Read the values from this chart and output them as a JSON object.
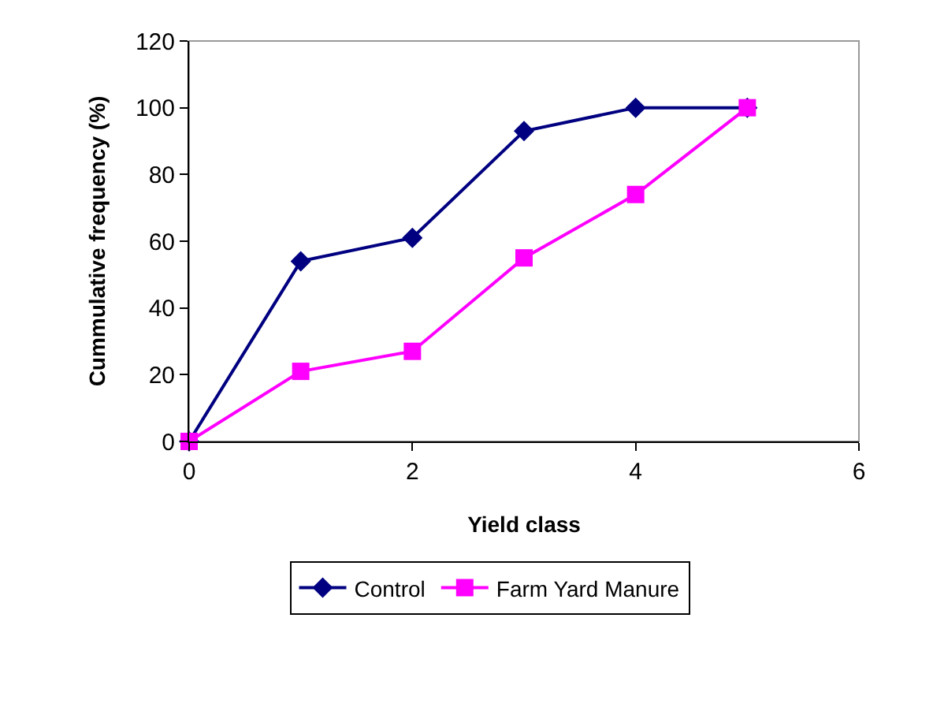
{
  "chart_data": {
    "type": "line",
    "xlabel": "Yield class",
    "ylabel": "Cummulative frequency (%)",
    "x": [
      0,
      1,
      2,
      3,
      4,
      5
    ],
    "series": [
      {
        "name": "Control",
        "color": "#000080",
        "values": [
          0,
          54,
          61,
          93,
          100,
          100
        ],
        "marker": "diamond"
      },
      {
        "name": "Farm Yard Manure",
        "color": "#ff00ff",
        "values": [
          0,
          21,
          27,
          55,
          74,
          100
        ],
        "marker": "square"
      }
    ],
    "xlim": [
      0,
      6
    ],
    "xticks": [
      0,
      2,
      4,
      6
    ],
    "ylim": [
      0,
      120
    ],
    "yticks": [
      0,
      20,
      40,
      60,
      80,
      100,
      120
    ],
    "grid": false,
    "legend": "bottom",
    "line_style": "solid"
  }
}
